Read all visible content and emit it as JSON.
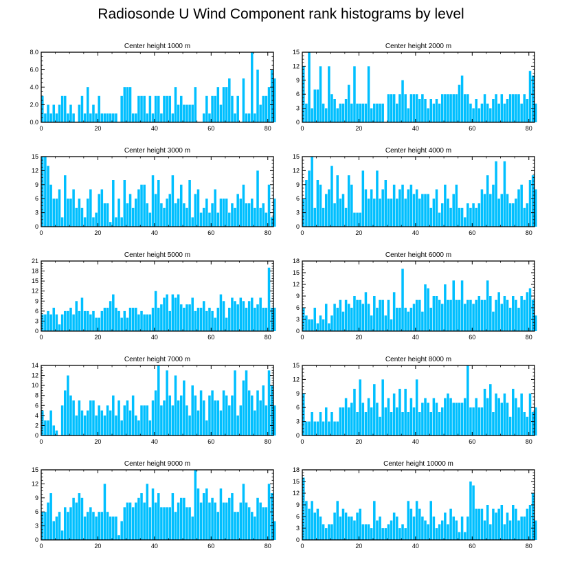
{
  "figure": {
    "title": "Radiosonde U Wind Component rank histograms by level"
  },
  "colors": {
    "bar_fill": "#00BFFF",
    "bar_edge": "#ffffff",
    "axis": "#000000",
    "background": "#ffffff"
  },
  "chart_data": [
    {
      "type": "bar",
      "title": "Center height 1000 m",
      "x_ticks": [
        0,
        20,
        40,
        60,
        80
      ],
      "xlim": [
        0,
        82
      ],
      "ylim": [
        0,
        8
      ],
      "y_ticks": [
        0,
        2,
        4,
        6,
        8
      ],
      "y_tick_labels": [
        "0.0",
        "2.0",
        "4.0",
        "6.0",
        "8.0"
      ],
      "values": [
        3,
        1,
        2,
        1,
        2,
        1,
        2,
        3,
        3,
        1,
        2,
        1,
        0,
        2,
        3,
        1,
        4,
        1,
        2,
        1,
        3,
        1,
        1,
        1,
        1,
        1,
        1,
        0,
        3,
        4,
        4,
        4,
        1,
        1,
        3,
        3,
        3,
        1,
        3,
        1,
        3,
        3,
        1,
        3,
        3,
        3,
        1,
        4,
        2,
        3,
        2,
        2,
        2,
        2,
        4,
        0,
        0,
        1,
        3,
        1,
        3,
        3,
        4,
        2,
        4,
        4,
        5,
        3,
        1,
        3,
        0,
        5,
        1,
        1,
        8,
        1,
        6,
        2,
        3,
        3,
        4,
        6,
        5
      ]
    },
    {
      "type": "bar",
      "title": "Center height 2000 m",
      "x_ticks": [
        0,
        20,
        40,
        60,
        80
      ],
      "xlim": [
        0,
        82
      ],
      "ylim": [
        0,
        15
      ],
      "y_ticks": [
        0,
        3,
        6,
        9,
        12,
        15
      ],
      "y_tick_labels": [
        "0",
        "3",
        "6",
        "9",
        "12",
        "15"
      ],
      "values": [
        12,
        4,
        15,
        3,
        7,
        7,
        12,
        4,
        3,
        12,
        6,
        5,
        3,
        4,
        4,
        5,
        8,
        4,
        12,
        4,
        4,
        4,
        4,
        12,
        3,
        4,
        4,
        4,
        4,
        0,
        6,
        6,
        6,
        4,
        6,
        9,
        6,
        3,
        6,
        6,
        6,
        5,
        6,
        5,
        3,
        5,
        4,
        5,
        4,
        6,
        6,
        6,
        6,
        6,
        6,
        8,
        10,
        6,
        6,
        4,
        3,
        5,
        3,
        4,
        6,
        4,
        3,
        5,
        6,
        4,
        6,
        4,
        5,
        6,
        6,
        6,
        6,
        4,
        6,
        5,
        11,
        10,
        4
      ]
    },
    {
      "type": "bar",
      "title": "Center height 3000 m",
      "x_ticks": [
        0,
        20,
        40,
        60,
        80
      ],
      "xlim": [
        0,
        82
      ],
      "ylim": [
        0,
        15
      ],
      "y_ticks": [
        0,
        3,
        6,
        9,
        12,
        15
      ],
      "y_tick_labels": [
        "0",
        "3",
        "6",
        "9",
        "12",
        "15"
      ],
      "values": [
        15,
        15,
        13,
        9,
        6,
        6,
        8,
        2,
        11,
        6,
        6,
        8,
        4,
        6,
        4,
        2,
        6,
        8,
        2,
        3,
        7,
        8,
        5,
        5,
        1,
        10,
        2,
        6,
        2,
        10,
        5,
        7,
        4,
        6,
        8,
        9,
        9,
        5,
        3,
        11,
        7,
        10,
        5,
        4,
        6,
        7,
        11,
        5,
        6,
        9,
        5,
        4,
        10,
        2,
        7,
        8,
        3,
        4,
        6,
        3,
        5,
        8,
        3,
        6,
        6,
        6,
        3,
        5,
        4,
        7,
        6,
        9,
        5,
        5,
        6,
        4,
        12,
        4,
        5,
        3,
        9,
        2,
        6
      ]
    },
    {
      "type": "bar",
      "title": "Center height 4000 m",
      "x_ticks": [
        0,
        20,
        40,
        60,
        80
      ],
      "xlim": [
        0,
        82
      ],
      "ylim": [
        0,
        15
      ],
      "y_ticks": [
        0,
        3,
        6,
        9,
        12,
        15
      ],
      "y_tick_labels": [
        "0",
        "3",
        "6",
        "9",
        "12",
        "15"
      ],
      "values": [
        6,
        10,
        12,
        15,
        4,
        10,
        9,
        4,
        7,
        8,
        13,
        5,
        11,
        6,
        7,
        4,
        11,
        9,
        3,
        3,
        3,
        12,
        8,
        6,
        8,
        6,
        12,
        6,
        8,
        10,
        6,
        6,
        9,
        6,
        8,
        9,
        6,
        8,
        9,
        7,
        8,
        6,
        7,
        7,
        7,
        4,
        6,
        8,
        3,
        5,
        9,
        6,
        4,
        7,
        9,
        4,
        4,
        2,
        5,
        4,
        5,
        4,
        5,
        8,
        7,
        11,
        7,
        9,
        14,
        6,
        7,
        14,
        7,
        5,
        5,
        6,
        8,
        9,
        4,
        5,
        10,
        11,
        8
      ]
    },
    {
      "type": "bar",
      "title": "Center height 5000 m",
      "x_ticks": [
        0,
        20,
        40,
        60,
        80
      ],
      "xlim": [
        0,
        82
      ],
      "ylim": [
        0,
        21
      ],
      "y_ticks": [
        0,
        3,
        6,
        9,
        12,
        15,
        18,
        21
      ],
      "y_tick_labels": [
        "0",
        "3",
        "6",
        "9",
        "12",
        "15",
        "18",
        "21"
      ],
      "values": [
        5,
        5,
        6,
        5,
        7,
        5,
        2,
        5,
        6,
        6,
        7,
        5,
        9,
        6,
        10,
        6,
        6,
        5,
        6,
        4,
        4,
        6,
        7,
        7,
        9,
        11,
        7,
        6,
        4,
        6,
        4,
        7,
        7,
        7,
        5,
        6,
        5,
        5,
        5,
        7,
        12,
        7,
        8,
        10,
        11,
        6,
        11,
        10,
        11,
        8,
        7,
        8,
        8,
        10,
        6,
        7,
        7,
        9,
        6,
        7,
        6,
        4,
        7,
        11,
        9,
        4,
        7,
        10,
        9,
        8,
        10,
        9,
        7,
        9,
        10,
        7,
        8,
        10,
        7,
        7,
        19,
        7,
        7
      ]
    },
    {
      "type": "bar",
      "title": "Center height 6000 m",
      "x_ticks": [
        0,
        20,
        40,
        60,
        80
      ],
      "xlim": [
        0,
        82
      ],
      "ylim": [
        0,
        18
      ],
      "y_ticks": [
        0,
        3,
        6,
        9,
        12,
        15,
        18
      ],
      "y_tick_labels": [
        "0",
        "3",
        "6",
        "9",
        "12",
        "15",
        "18"
      ],
      "values": [
        6,
        4,
        3,
        3,
        6,
        2,
        4,
        3,
        7,
        2,
        4,
        7,
        6,
        8,
        5,
        8,
        7,
        6,
        9,
        8,
        8,
        7,
        10,
        7,
        4,
        9,
        6,
        8,
        8,
        4,
        8,
        3,
        10,
        6,
        6,
        16,
        6,
        5,
        6,
        7,
        8,
        8,
        5,
        12,
        11,
        6,
        9,
        9,
        8,
        7,
        12,
        8,
        8,
        13,
        8,
        8,
        13,
        7,
        8,
        8,
        7,
        8,
        9,
        8,
        8,
        13,
        9,
        5,
        8,
        10,
        7,
        9,
        8,
        6,
        9,
        8,
        6,
        9,
        8,
        10,
        11,
        8,
        4
      ]
    },
    {
      "type": "bar",
      "title": "Center height 7000 m",
      "x_ticks": [
        0,
        20,
        40,
        60,
        80
      ],
      "xlim": [
        0,
        82
      ],
      "ylim": [
        0,
        14
      ],
      "y_ticks": [
        0,
        2,
        4,
        6,
        8,
        10,
        12,
        14
      ],
      "y_tick_labels": [
        "0",
        "2",
        "4",
        "6",
        "8",
        "10",
        "12",
        "14"
      ],
      "values": [
        5,
        3,
        3,
        5,
        2,
        1,
        0,
        6,
        9,
        12,
        8,
        7,
        4,
        7,
        5,
        4,
        5,
        7,
        7,
        4,
        6,
        5,
        4,
        6,
        5,
        8,
        4,
        7,
        3,
        6,
        7,
        5,
        8,
        4,
        3,
        6,
        6,
        6,
        3,
        7,
        9,
        14,
        6,
        7,
        13,
        8,
        6,
        12,
        7,
        8,
        11,
        6,
        4,
        10,
        8,
        5,
        9,
        7,
        3,
        8,
        9,
        7,
        7,
        5,
        9,
        8,
        6,
        8,
        13,
        4,
        6,
        11,
        13,
        9,
        8,
        5,
        9,
        7,
        10,
        6,
        13,
        10,
        6
      ]
    },
    {
      "type": "bar",
      "title": "Center height 8000 m",
      "x_ticks": [
        0,
        20,
        40,
        60,
        80
      ],
      "xlim": [
        0,
        82
      ],
      "ylim": [
        0,
        15
      ],
      "y_ticks": [
        0,
        3,
        6,
        9,
        12,
        15
      ],
      "y_tick_labels": [
        "0",
        "3",
        "6",
        "9",
        "12",
        "15"
      ],
      "values": [
        9,
        3,
        3,
        5,
        3,
        3,
        5,
        3,
        6,
        3,
        5,
        3,
        3,
        6,
        6,
        8,
        6,
        7,
        10,
        5,
        12,
        7,
        5,
        8,
        6,
        11,
        7,
        4,
        12,
        6,
        8,
        5,
        9,
        6,
        10,
        5,
        10,
        5,
        8,
        6,
        12,
        5,
        7,
        8,
        7,
        5,
        8,
        7,
        5,
        6,
        8,
        9,
        8,
        7,
        7,
        7,
        7,
        8,
        15,
        6,
        6,
        8,
        6,
        6,
        10,
        8,
        11,
        5,
        9,
        8,
        7,
        9,
        7,
        4,
        10,
        8,
        6,
        9,
        5,
        4,
        9,
        5,
        6
      ]
    },
    {
      "type": "bar",
      "title": "Center height 9000 m",
      "x_ticks": [
        0,
        20,
        40,
        60,
        80
      ],
      "xlim": [
        0,
        82
      ],
      "ylim": [
        0,
        15
      ],
      "y_ticks": [
        0,
        3,
        6,
        9,
        12,
        15
      ],
      "y_tick_labels": [
        "0",
        "3",
        "6",
        "9",
        "12",
        "15"
      ],
      "values": [
        6,
        6,
        8,
        10,
        4,
        5,
        6,
        2,
        7,
        6,
        7,
        9,
        8,
        10,
        9,
        5,
        6,
        7,
        6,
        5,
        6,
        6,
        12,
        6,
        5,
        5,
        5,
        1,
        4,
        7,
        8,
        8,
        7,
        8,
        9,
        10,
        8,
        12,
        7,
        11,
        8,
        10,
        7,
        7,
        7,
        7,
        10,
        6,
        8,
        9,
        9,
        7,
        7,
        5,
        15,
        11,
        8,
        10,
        11,
        8,
        9,
        8,
        6,
        11,
        8,
        8,
        9,
        10,
        6,
        6,
        8,
        12,
        8,
        7,
        6,
        5,
        9,
        8,
        7,
        7,
        12,
        10,
        4
      ]
    },
    {
      "type": "bar",
      "title": "Center height 10000 m",
      "x_ticks": [
        0,
        20,
        40,
        60,
        80
      ],
      "xlim": [
        0,
        82
      ],
      "ylim": [
        0,
        18
      ],
      "y_ticks": [
        0,
        3,
        6,
        9,
        12,
        15,
        18
      ],
      "y_tick_labels": [
        "0",
        "3",
        "6",
        "9",
        "12",
        "15",
        "18"
      ],
      "values": [
        16,
        10,
        8,
        10,
        7,
        8,
        6,
        4,
        3,
        4,
        4,
        7,
        10,
        6,
        8,
        7,
        6,
        6,
        5,
        7,
        8,
        4,
        4,
        4,
        3,
        10,
        5,
        6,
        3,
        3,
        4,
        5,
        7,
        6,
        3,
        4,
        3,
        10,
        8,
        6,
        10,
        8,
        6,
        5,
        4,
        10,
        6,
        3,
        4,
        5,
        7,
        4,
        8,
        6,
        5,
        2,
        6,
        2,
        6,
        15,
        14,
        8,
        8,
        8,
        5,
        9,
        4,
        8,
        7,
        8,
        9,
        4,
        7,
        5,
        9,
        8,
        5,
        6,
        6,
        8,
        9,
        12,
        5
      ]
    }
  ]
}
